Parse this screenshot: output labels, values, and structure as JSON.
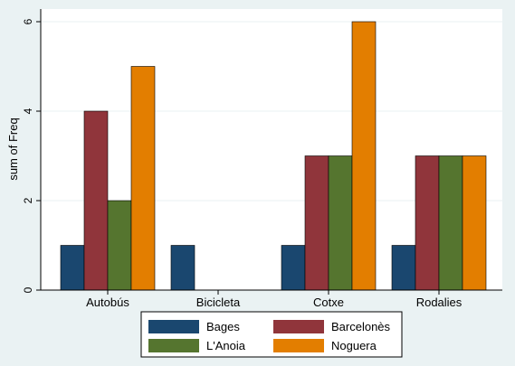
{
  "chart_data": {
    "type": "bar",
    "title": "",
    "xlabel": "",
    "ylabel": "sum of Freq",
    "ylim": [
      0,
      6
    ],
    "yticks": [
      0,
      2,
      4,
      6
    ],
    "grid": true,
    "legend_position": "bottom",
    "categories": [
      "Autobús",
      "Bicicleta",
      "Cotxe",
      "Rodalies"
    ],
    "series": [
      {
        "name": "Bages",
        "color": "#1a476f",
        "values": [
          1,
          1,
          1,
          1
        ]
      },
      {
        "name": "Barcelonès",
        "color": "#90353b",
        "values": [
          4,
          null,
          3,
          3
        ]
      },
      {
        "name": "L'Anoia",
        "color": "#55752f",
        "values": [
          2,
          null,
          3,
          3
        ]
      },
      {
        "name": "Noguera",
        "color": "#e37e00",
        "values": [
          5,
          null,
          6,
          3
        ]
      }
    ]
  }
}
